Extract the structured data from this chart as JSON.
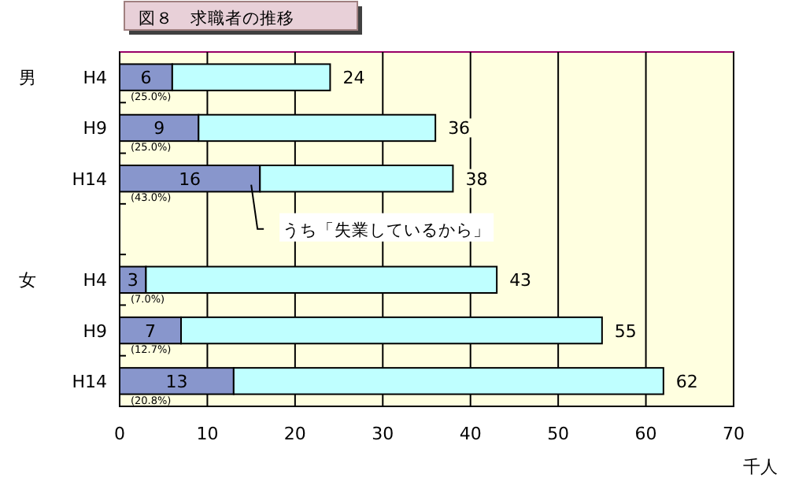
{
  "chart_data": {
    "type": "bar",
    "orientation": "horizontal",
    "stacked": true,
    "title": "図８　求職者の推移",
    "xlabel": "千人",
    "categories": [
      "H4",
      "H9",
      "H14",
      null,
      "H4",
      "H9",
      "H14"
    ],
    "series": [
      {
        "name": "うち「失業しているから」",
        "color": "#8896cc",
        "values": [
          6,
          9,
          16,
          null,
          3,
          7,
          13
        ],
        "value_labels": [
          "6",
          "9",
          "16",
          null,
          "3",
          "7",
          "13"
        ]
      },
      {
        "color": "#bfffff",
        "values": [
          18,
          27,
          22,
          null,
          40,
          48,
          49
        ]
      }
    ],
    "totals": [
      "24",
      "36",
      "38",
      null,
      "43",
      "55",
      "62"
    ],
    "annotations": [
      "男",
      "女",
      "(25.0%)",
      "(25.0%)",
      "(43.0%)",
      "(7.0%)",
      "(12.7%)",
      "(20.8%)"
    ],
    "xlim": [
      0,
      70
    ],
    "xticks": [
      0,
      10,
      20,
      30,
      40,
      50,
      60,
      70
    ],
    "grid": "x"
  }
}
